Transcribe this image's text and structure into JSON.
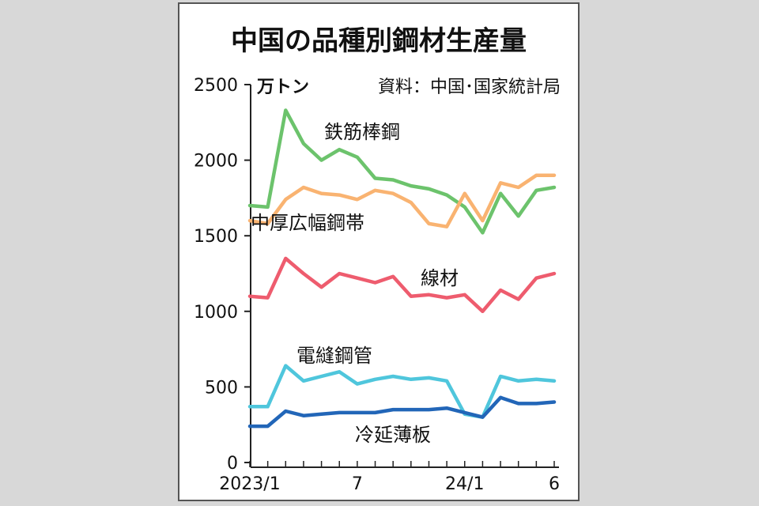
{
  "chart_data": {
    "type": "line",
    "title": "中国の品種別鋼材生産量",
    "unit_label": "万トン",
    "source": "資料：中国･国家統計局",
    "ylim": [
      0,
      2500
    ],
    "yticks": [
      0,
      500,
      1000,
      1500,
      2000,
      2500
    ],
    "x": [
      "2023/1",
      "2023/2",
      "2023/3",
      "2023/4",
      "2023/5",
      "2023/6",
      "2023/7",
      "2023/8",
      "2023/9",
      "2023/10",
      "2023/11",
      "2023/12",
      "2024/1",
      "2024/2",
      "2024/3",
      "2024/4",
      "2024/5",
      "2024/6"
    ],
    "xtick_labels": [
      {
        "index": 0,
        "label": "2023/1"
      },
      {
        "index": 6,
        "label": "7"
      },
      {
        "index": 12,
        "label": "24/1"
      },
      {
        "index": 17,
        "label": "6"
      }
    ],
    "grid": false,
    "legend": "inline labels",
    "series": [
      {
        "name": "鉄筋棒鋼",
        "color": "#6cc36c",
        "values": [
          1700,
          1690,
          2330,
          2110,
          2000,
          2070,
          2020,
          1880,
          1870,
          1830,
          1810,
          1770,
          1690,
          1520,
          1780,
          1630,
          1800,
          1820
        ]
      },
      {
        "name": "中厚広幅鋼帯",
        "color": "#f9b371",
        "values": [
          1600,
          1580,
          1740,
          1820,
          1780,
          1770,
          1740,
          1800,
          1780,
          1720,
          1580,
          1560,
          1780,
          1600,
          1850,
          1820,
          1900,
          1900
        ]
      },
      {
        "name": "線材",
        "color": "#ee5c6e",
        "values": [
          1100,
          1090,
          1350,
          1250,
          1160,
          1250,
          1220,
          1190,
          1230,
          1100,
          1110,
          1090,
          1110,
          1000,
          1140,
          1080,
          1220,
          1250
        ]
      },
      {
        "name": "電縫鋼管",
        "color": "#4fc6dc",
        "values": [
          370,
          370,
          640,
          540,
          570,
          600,
          520,
          550,
          570,
          550,
          560,
          540,
          320,
          300,
          570,
          540,
          550,
          540
        ]
      },
      {
        "name": "冷延薄板",
        "color": "#2266b8",
        "values": [
          240,
          240,
          340,
          310,
          320,
          330,
          330,
          330,
          350,
          350,
          350,
          360,
          330,
          300,
          430,
          390,
          390,
          400
        ]
      }
    ]
  }
}
